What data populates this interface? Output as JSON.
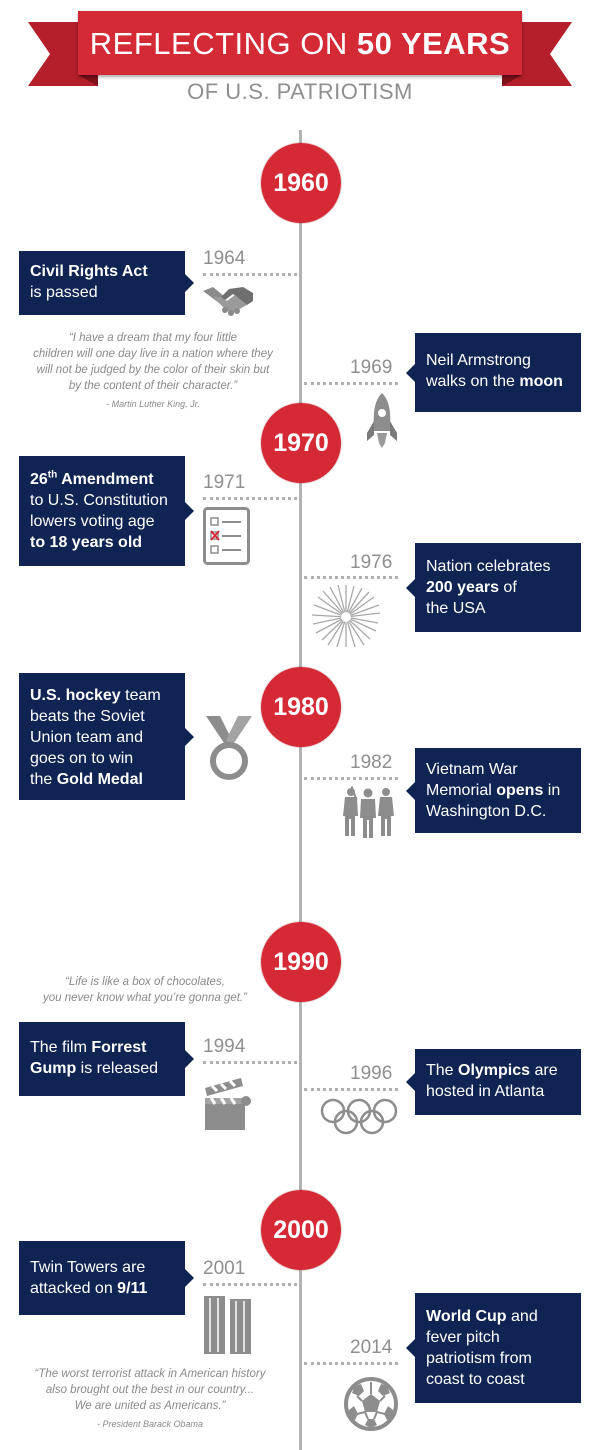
{
  "header": {
    "title_pre": "REFLECTING ON ",
    "title_bold": "50 YEARS",
    "subtitle": "OF U.S. PATRIOTISM"
  },
  "colors": {
    "red": "#d52a36",
    "navy": "#0f2452",
    "gray": "#8f8f8f"
  },
  "decades": [
    "1960",
    "1970",
    "1980",
    "1990",
    "2000"
  ],
  "events": {
    "e1964": {
      "year": "1964",
      "b1": "Civil Rights Act",
      "t1": "is passed",
      "icon": "handshake-icon"
    },
    "e1969": {
      "year": "1969",
      "t1": "Neil Armstrong",
      "t2": "walks on the ",
      "b2": "moon",
      "icon": "rocket-icon"
    },
    "e1971": {
      "year": "1971",
      "b1a": "26",
      "sup": "th",
      "b1b": " Amendment",
      "t2": "to U.S. Constitution",
      "t3": "lowers voting age",
      "b4": "to 18 years old",
      "icon": "ballot-checklist-icon"
    },
    "e1976": {
      "year": "1976",
      "t1": "Nation celebrates",
      "b2": "200 years",
      "t2": " of",
      "t3": "the USA",
      "icon": "fireworks-icon"
    },
    "e1980": {
      "b1": "U.S. hockey",
      "t1": " team",
      "t2": "beats the Soviet",
      "t3": "Union team and",
      "t4": "goes on to win",
      "t5": "the ",
      "b5": "Gold Medal",
      "icon": "medal-icon"
    },
    "e1982": {
      "year": "1982",
      "t1": "Vietnam War",
      "t2": "Memorial ",
      "b2": "opens",
      "t2b": " in",
      "t3": "Washington D.C.",
      "icon": "soldiers-statue-icon"
    },
    "e1994": {
      "year": "1994",
      "t1": "The film ",
      "b1": "Forrest",
      "b2": "Gump",
      "t2": " is released",
      "icon": "clapperboard-icon"
    },
    "e1996": {
      "year": "1996",
      "t1": "The ",
      "b1": "Olympics",
      "t1b": " are",
      "t2": "hosted in Atlanta",
      "icon": "olympic-rings-icon"
    },
    "e2001": {
      "year": "2001",
      "t1": "Twin Towers are",
      "t2": "attacked on ",
      "b2": "9/11",
      "icon": "twin-towers-icon"
    },
    "e2014": {
      "year": "2014",
      "b1": "World Cup",
      "t1": " and",
      "t2": "fever pitch",
      "t3": "patriotism from",
      "t4": "coast to coast",
      "icon": "soccer-ball-icon"
    }
  },
  "quotes": {
    "mlk": {
      "l1": "“I have a dream that my four little",
      "l2": "children will one day live in a nation where they",
      "l3": "will not be judged by the color of their skin but",
      "l4": "by the content of their character.”",
      "by": "- Martin Luther King, Jr."
    },
    "gump": {
      "l1": "“Life is like a box of chocolates,",
      "l2": "you never know what you’re gonna get.”"
    },
    "obama": {
      "l1": "“The worst terrorist attack in American history",
      "l2": "also brought out the best in our country...",
      "l3": "We are united as Americans.”",
      "by": "- President Barack Obama"
    }
  }
}
